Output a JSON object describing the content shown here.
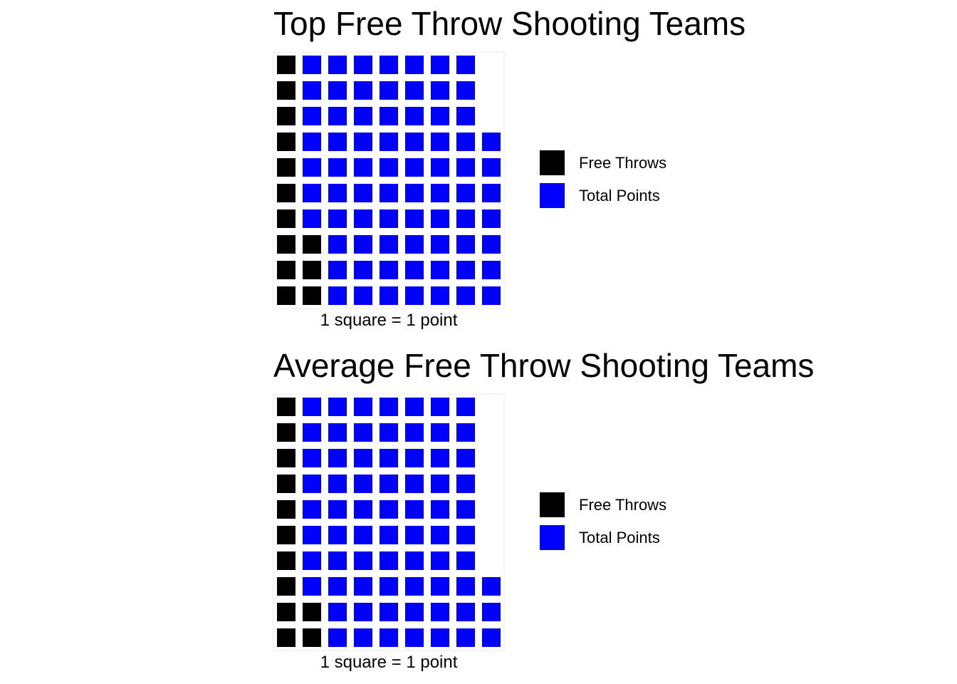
{
  "chart_data": [
    {
      "type": "waffle",
      "title": "Top Free Throw Shooting Teams",
      "caption": "1 square = 1 point",
      "rows": 10,
      "columns": [
        [
          "Free Throws",
          "Free Throws",
          "Free Throws",
          "Free Throws",
          "Free Throws",
          "Free Throws",
          "Free Throws",
          "Free Throws",
          "Free Throws",
          "Free Throws"
        ],
        [
          "Total Points",
          "Total Points",
          "Total Points",
          "Total Points",
          "Total Points",
          "Total Points",
          "Total Points",
          "Free Throws",
          "Free Throws",
          "Free Throws"
        ],
        [
          "Total Points",
          "Total Points",
          "Total Points",
          "Total Points",
          "Total Points",
          "Total Points",
          "Total Points",
          "Total Points",
          "Total Points",
          "Total Points"
        ],
        [
          "Total Points",
          "Total Points",
          "Total Points",
          "Total Points",
          "Total Points",
          "Total Points",
          "Total Points",
          "Total Points",
          "Total Points",
          "Total Points"
        ],
        [
          "Total Points",
          "Total Points",
          "Total Points",
          "Total Points",
          "Total Points",
          "Total Points",
          "Total Points",
          "Total Points",
          "Total Points",
          "Total Points"
        ],
        [
          "Total Points",
          "Total Points",
          "Total Points",
          "Total Points",
          "Total Points",
          "Total Points",
          "Total Points",
          "Total Points",
          "Total Points",
          "Total Points"
        ],
        [
          "Total Points",
          "Total Points",
          "Total Points",
          "Total Points",
          "Total Points",
          "Total Points",
          "Total Points",
          "Total Points",
          "Total Points",
          "Total Points"
        ],
        [
          "Total Points",
          "Total Points",
          "Total Points",
          "Total Points",
          "Total Points",
          "Total Points",
          "Total Points",
          "Total Points",
          "Total Points",
          "Total Points"
        ],
        [
          "",
          "",
          "",
          "Total Points",
          "Total Points",
          "Total Points",
          "Total Points",
          "Total Points",
          "Total Points",
          "Total Points"
        ]
      ],
      "series": [
        {
          "name": "Free Throws",
          "value": 13,
          "color": "#000000"
        },
        {
          "name": "Total Points",
          "value": 74,
          "color": "#0000FF"
        }
      ],
      "legend": {
        "position": "right"
      }
    },
    {
      "type": "waffle",
      "title": "Average Free Throw Shooting Teams",
      "caption": "1 square = 1 point",
      "rows": 10,
      "columns": [
        [
          "Free Throws",
          "Free Throws",
          "Free Throws",
          "Free Throws",
          "Free Throws",
          "Free Throws",
          "Free Throws",
          "Free Throws",
          "Free Throws",
          "Free Throws"
        ],
        [
          "Total Points",
          "Total Points",
          "Total Points",
          "Total Points",
          "Total Points",
          "Total Points",
          "Total Points",
          "Total Points",
          "Free Throws",
          "Free Throws"
        ],
        [
          "Total Points",
          "Total Points",
          "Total Points",
          "Total Points",
          "Total Points",
          "Total Points",
          "Total Points",
          "Total Points",
          "Total Points",
          "Total Points"
        ],
        [
          "Total Points",
          "Total Points",
          "Total Points",
          "Total Points",
          "Total Points",
          "Total Points",
          "Total Points",
          "Total Points",
          "Total Points",
          "Total Points"
        ],
        [
          "Total Points",
          "Total Points",
          "Total Points",
          "Total Points",
          "Total Points",
          "Total Points",
          "Total Points",
          "Total Points",
          "Total Points",
          "Total Points"
        ],
        [
          "Total Points",
          "Total Points",
          "Total Points",
          "Total Points",
          "Total Points",
          "Total Points",
          "Total Points",
          "Total Points",
          "Total Points",
          "Total Points"
        ],
        [
          "Total Points",
          "Total Points",
          "Total Points",
          "Total Points",
          "Total Points",
          "Total Points",
          "Total Points",
          "Total Points",
          "Total Points",
          "Total Points"
        ],
        [
          "Total Points",
          "Total Points",
          "Total Points",
          "Total Points",
          "Total Points",
          "Total Points",
          "Total Points",
          "Total Points",
          "Total Points",
          "Total Points"
        ],
        [
          "",
          "",
          "",
          "",
          "",
          "",
          "",
          "Total Points",
          "Total Points",
          "Total Points"
        ]
      ],
      "series": [
        {
          "name": "Free Throws",
          "value": 12,
          "color": "#000000"
        },
        {
          "name": "Total Points",
          "value": 71,
          "color": "#0000FF"
        }
      ],
      "legend": {
        "position": "right"
      }
    }
  ]
}
